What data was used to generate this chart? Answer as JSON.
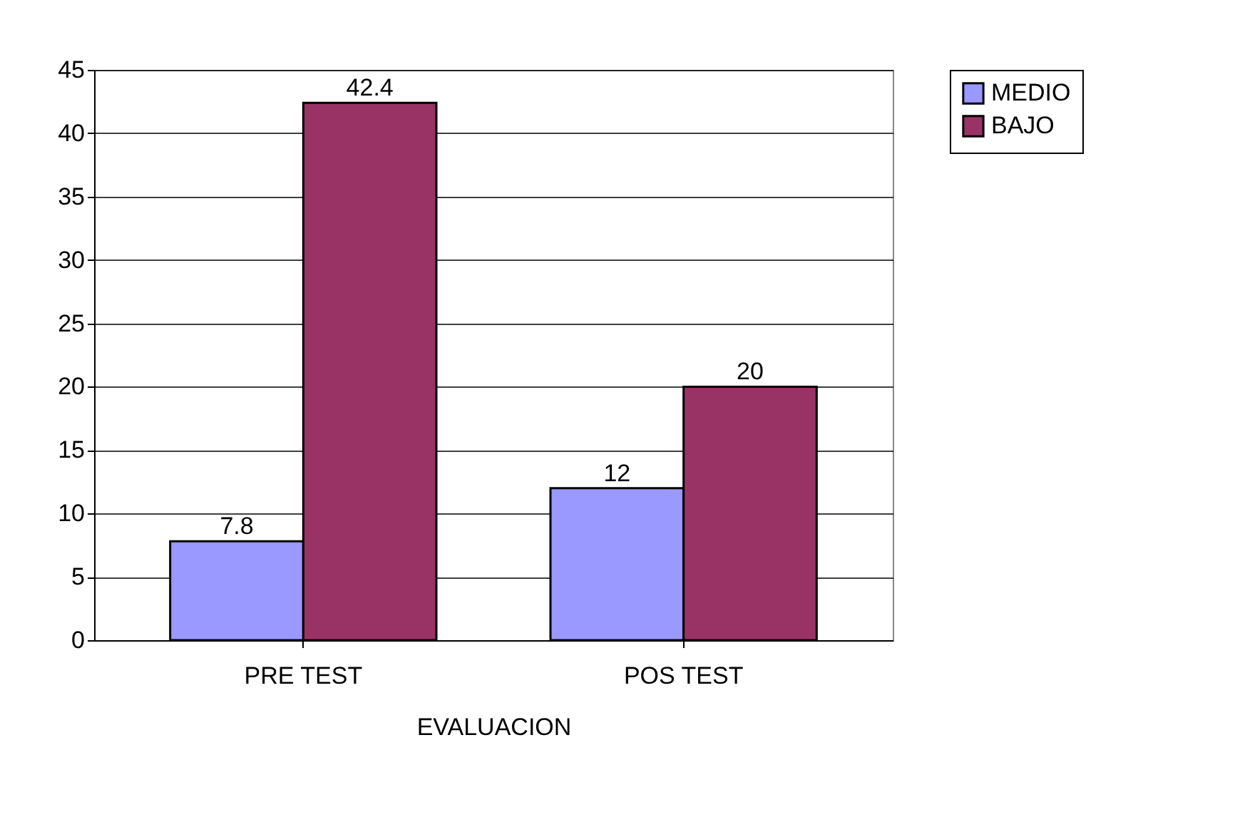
{
  "chart_data": {
    "type": "bar",
    "xlabel": "EVALUACION",
    "categories": [
      "PRE TEST",
      "POS TEST"
    ],
    "series": [
      {
        "name": "MEDIO",
        "color": "#9999ff",
        "values": [
          7.8,
          12
        ]
      },
      {
        "name": "BAJO",
        "color": "#993366",
        "values": [
          42.4,
          20
        ]
      }
    ],
    "ylim": [
      0,
      45
    ],
    "yticks": [
      0,
      5,
      10,
      15,
      20,
      25,
      30,
      35,
      40,
      45
    ],
    "grid": "y",
    "legend": "top right",
    "data_labels": true
  }
}
